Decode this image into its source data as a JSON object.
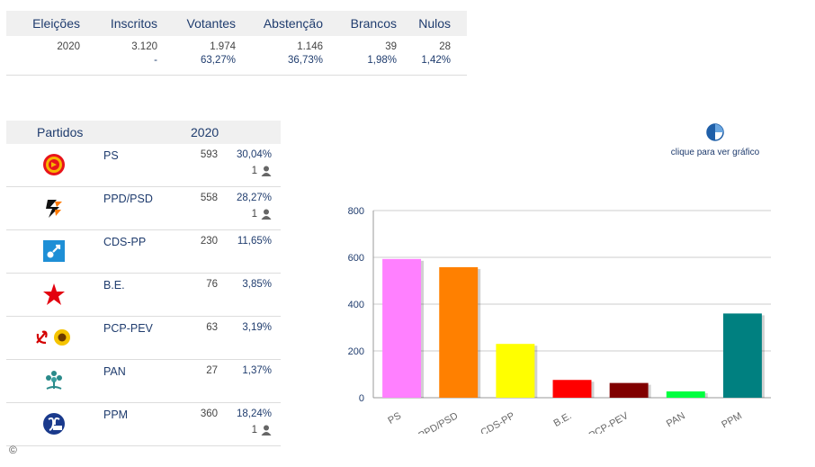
{
  "summary": {
    "headers": [
      "Eleições",
      "Inscritos",
      "Votantes",
      "Abstenção",
      "Brancos",
      "Nulos"
    ],
    "row1": [
      "2020",
      "3.120",
      "1.974",
      "1.146",
      "39",
      "28"
    ],
    "row2": [
      "",
      "-",
      "63,27%",
      "36,73%",
      "1,98%",
      "1,42%"
    ]
  },
  "parties": {
    "header_name": "Partidos",
    "header_year": "2020",
    "rows": [
      {
        "name": "PS",
        "votes": "593",
        "pct": "30,04%",
        "seats": "1",
        "logo": "ps-logo-icon"
      },
      {
        "name": "PPD/PSD",
        "votes": "558",
        "pct": "28,27%",
        "seats": "1",
        "logo": "ppd-psd-logo-icon"
      },
      {
        "name": "CDS-PP",
        "votes": "230",
        "pct": "11,65%",
        "seats": "",
        "logo": "cds-pp-logo-icon"
      },
      {
        "name": "B.E.",
        "votes": "76",
        "pct": "3,85%",
        "seats": "",
        "logo": "be-star-icon"
      },
      {
        "name": "PCP-PEV",
        "votes": "63",
        "pct": "3,19%",
        "seats": "",
        "logo": "pcp-pev-logo-icon"
      },
      {
        "name": "PAN",
        "votes": "27",
        "pct": "1,37%",
        "seats": "",
        "logo": "pan-logo-icon"
      },
      {
        "name": "PPM",
        "votes": "360",
        "pct": "18,24%",
        "seats": "1",
        "logo": "ppm-logo-icon"
      }
    ]
  },
  "graph_link": {
    "label": "clique para ver gráfico"
  },
  "copyright": "©",
  "colors": {
    "PS": "#ff80ff",
    "PPD/PSD": "#ff8000",
    "CDS-PP": "#ffff00",
    "B.E.": "#ff0000",
    "PCP-PEV": "#800000",
    "PAN": "#00ff40",
    "PPM": "#008080"
  },
  "chart_data": {
    "type": "bar",
    "categories": [
      "PS",
      "PPD/PSD",
      "CDS-PP",
      "B.E.",
      "PCP-PEV",
      "PAN",
      "PPM"
    ],
    "values": [
      593,
      558,
      230,
      76,
      63,
      27,
      360
    ],
    "ylim": [
      0,
      800
    ],
    "yticks": [
      0,
      200,
      400,
      600,
      800
    ],
    "title": "",
    "xlabel": "",
    "ylabel": "",
    "grid": true,
    "legend": "none"
  }
}
